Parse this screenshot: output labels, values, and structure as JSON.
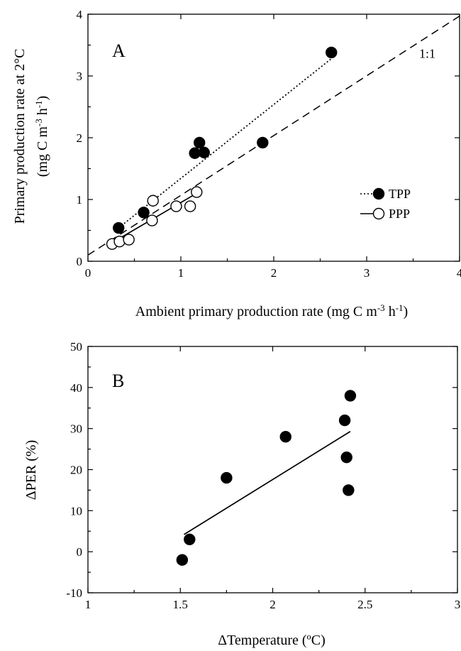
{
  "chart_data": [
    {
      "type": "scatter",
      "panel_label": "A",
      "xlabel_main": "Ambient primary production rate (mg C m",
      "xlabel_sup1": "-3",
      "xlabel_mid": " h",
      "xlabel_sup2": "-1",
      "xlabel_end": ")",
      "ylabel_line1": "Primary production rate at 2°C",
      "ylabel_line2_main": "(mg C m",
      "ylabel_line2_sup1": "-3",
      "ylabel_line2_mid": " h",
      "ylabel_line2_sup2": "-1",
      "ylabel_line2_end": ")",
      "xlim": [
        0,
        4
      ],
      "ylim": [
        0,
        4
      ],
      "xticks": [
        "0",
        "1",
        "2",
        "3",
        "4"
      ],
      "yticks": [
        "0",
        "1",
        "2",
        "3",
        "4"
      ],
      "grid": false,
      "legend_position": "right",
      "reference_line": {
        "label": "1:1",
        "from": [
          0,
          0.1
        ],
        "to": [
          4,
          3.97
        ],
        "style": "dashed"
      },
      "series": [
        {
          "name": "TPP",
          "marker": "filled-circle",
          "line_style": "dotted",
          "x": [
            0.33,
            0.6,
            1.15,
            1.2,
            1.25,
            1.88,
            2.62
          ],
          "y": [
            0.54,
            0.79,
            1.75,
            1.92,
            1.76,
            1.92,
            3.38
          ],
          "fit": {
            "from": [
              0.33,
              0.54
            ],
            "to": [
              2.62,
              3.28
            ]
          }
        },
        {
          "name": "PPP",
          "marker": "open-circle",
          "line_style": "solid",
          "x": [
            0.26,
            0.34,
            0.44,
            0.69,
            0.7,
            0.95,
            1.1,
            1.17
          ],
          "y": [
            0.28,
            0.32,
            0.35,
            0.66,
            0.98,
            0.89,
            0.89,
            1.12
          ],
          "fit": {
            "from": [
              0.26,
              0.3
            ],
            "to": [
              1.17,
              1.1
            ]
          }
        }
      ]
    },
    {
      "type": "scatter",
      "panel_label": "B",
      "xlabel": "ΔTemperature (ºC)",
      "ylabel": "ΔPER (%)",
      "xlim": [
        1,
        3
      ],
      "ylim": [
        -10,
        50
      ],
      "xticks": [
        "1",
        "1.5",
        "2",
        "2.5",
        "3"
      ],
      "yticks": [
        "-10",
        "0",
        "10",
        "20",
        "30",
        "40",
        "50"
      ],
      "grid": false,
      "series": [
        {
          "marker": "filled-circle",
          "x": [
            1.51,
            1.55,
            1.75,
            2.07,
            2.39,
            2.4,
            2.41,
            2.42
          ],
          "y": [
            -2,
            3,
            18,
            28,
            32,
            23,
            15,
            38
          ],
          "fit": {
            "from": [
              1.52,
              4.2
            ],
            "to": [
              2.42,
              29.3
            ]
          }
        }
      ]
    }
  ]
}
